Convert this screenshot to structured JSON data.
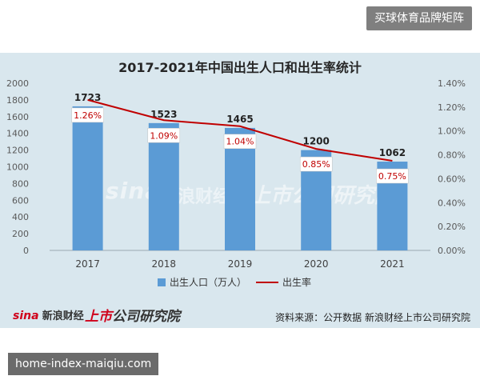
{
  "corner_badge": "买球体育品牌矩阵",
  "bottom_banner": "home-index-maiqiu.com",
  "watermark": {
    "sina": "sina",
    "sina_cn": "新浪财经",
    "research": "上市公司研究院"
  },
  "footer": {
    "logo_sina": "sina",
    "logo_brand": "新浪财经",
    "logo_research_prefix": "上市",
    "logo_research_rest": "公司研究院",
    "source": "资料来源：公开数据 新浪财经上市公司研究院"
  },
  "colors": {
    "panel_bg": "#d9e7ee",
    "bar": "#5b9bd5",
    "line": "#c00000",
    "label_box_bg": "#ffffff",
    "percent_text": "#c00000"
  },
  "chart_data": {
    "type": "bar",
    "title": "2017-2021年中国出生人口和出生率统计",
    "categories": [
      "2017",
      "2018",
      "2019",
      "2020",
      "2021"
    ],
    "series": [
      {
        "name": "出生人口（万人）",
        "type": "bar",
        "axis": "left",
        "values": [
          1723,
          1523,
          1465,
          1200,
          1062
        ],
        "data_labels": [
          "1723",
          "1523",
          "1465",
          "1200",
          "1062"
        ]
      },
      {
        "name": "出生率",
        "type": "line",
        "axis": "right",
        "values": [
          1.26,
          1.09,
          1.04,
          0.85,
          0.75
        ],
        "data_labels": [
          "1.26%",
          "1.09%",
          "1.04%",
          "0.85%",
          "0.75%"
        ]
      }
    ],
    "y_left": {
      "range": [
        0,
        2000
      ],
      "ticks": [
        "0",
        "200",
        "400",
        "600",
        "800",
        "1000",
        "1200",
        "1400",
        "1600",
        "1800",
        "2000"
      ]
    },
    "y_right": {
      "range": [
        0,
        1.4
      ],
      "ticks": [
        "0.00%",
        "0.20%",
        "0.40%",
        "0.60%",
        "0.80%",
        "1.00%",
        "1.20%",
        "1.40%"
      ]
    },
    "grid": false,
    "legend": "bottom"
  }
}
